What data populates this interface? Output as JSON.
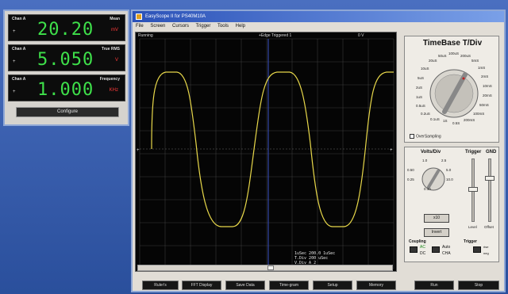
{
  "meter": {
    "rows": [
      {
        "channel": "Chan A",
        "mode": "Mean",
        "value": "20.20",
        "unit": "mV"
      },
      {
        "channel": "Chan A",
        "mode": "True RMS",
        "value": "5.050",
        "unit": "V"
      },
      {
        "channel": "Chan A",
        "mode": "Frequency",
        "value": "1.000",
        "unit": "KHz"
      }
    ],
    "configure_label": "Configure",
    "accent_color": "#3ee04a"
  },
  "scope": {
    "title": "EasyScope II for PS40M10A",
    "menu": [
      "File",
      "Screen",
      "Cursors",
      "Trigger",
      "Tools",
      "Help"
    ],
    "status_left": "Running",
    "status_center": "+Edge Triggered  1",
    "status_right": "0  V",
    "readout": [
      "1uSec  200.0 1uSec",
      "T.Div    200 uSec",
      "V.Div  A 2"
    ],
    "trace_color": "#e8d84a"
  },
  "timebase": {
    "title": "TimeBase T/Div",
    "labels": [
      "20uS",
      "50uS",
      "100uS",
      "200uS",
      "5mS",
      "1mS",
      "2mS",
      "10mS",
      "20mS",
      "50mS",
      "100mS",
      "200mS",
      "0.5S",
      "1S",
      "10uS",
      "5uS",
      "2uS",
      "1uS",
      "0.5uS",
      "0.2uS",
      "0.1uS"
    ],
    "oversampling": "OverSampling"
  },
  "volts": {
    "title": "Volts/Div",
    "scale_labels": [
      "1.0",
      "2.5",
      "5.0",
      "10.0",
      "0.50",
      "0.25",
      "0.10"
    ],
    "x10_label": "x10",
    "invert_label": "Invert",
    "trigger_label": "Trigger",
    "gnd_label": "GND",
    "level_label": "Level",
    "offset_label": "Offset",
    "coupling_label": "Coupling",
    "trigger2_label": "Trigger",
    "ac_label": "AC",
    "dc_label": "DC",
    "auto_label": "Auto",
    "cha_label": "CHA",
    "rise_label": "rise",
    "neg_label": "neg"
  },
  "bottom_buttons": [
    "Ruler's",
    "FFT Display",
    "Save Data",
    "Time-gram",
    "Setup",
    "Memory",
    "Run",
    "Stop"
  ]
}
